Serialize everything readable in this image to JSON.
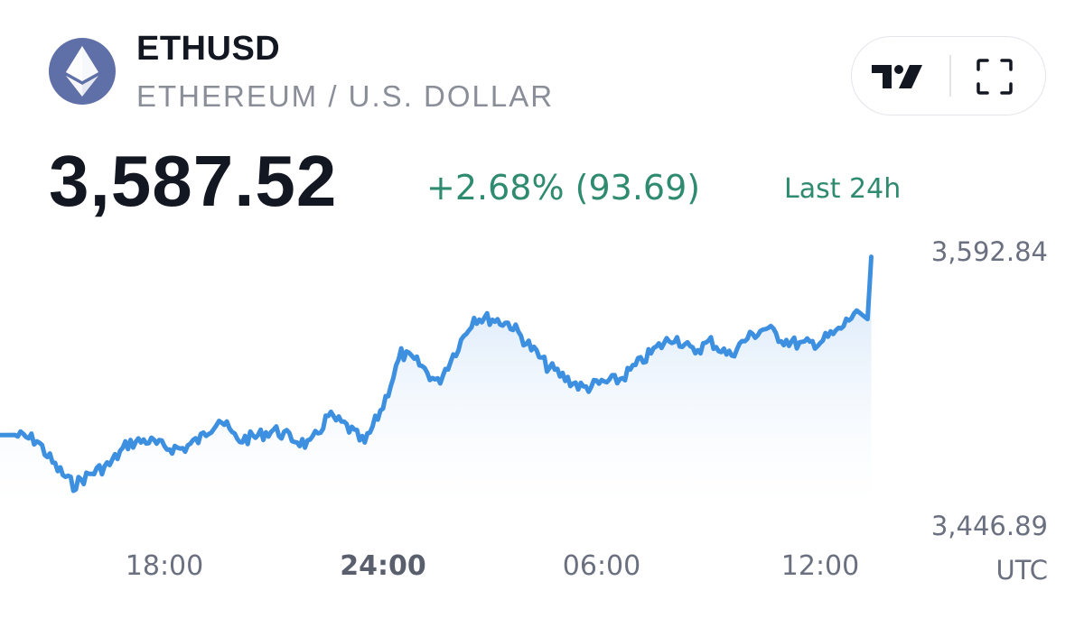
{
  "header": {
    "symbol": "ETHUSD",
    "subtitle": "ETHEREUM / U.S. DOLLAR",
    "logo_icon": "ethereum-icon"
  },
  "toolbar": {
    "tradingview_icon": "tradingview-logo-icon",
    "fullscreen_icon": "fullscreen-icon"
  },
  "quote": {
    "price": "3,587.52",
    "change": "+2.68% (93.69)",
    "period": "Last 24h",
    "change_color": "#2e8b6f"
  },
  "colors": {
    "line": "#3d8fe0",
    "area_top": "#cfe3f8",
    "text_primary": "#131722",
    "text_secondary": "#8a8e99",
    "logo_bg": "#5f6fa8"
  },
  "chart_data": {
    "type": "area",
    "timezone_label": "UTC",
    "x_tick_labels": [
      "18:00",
      "24:00",
      "06:00",
      "12:00"
    ],
    "x_tick_hours": [
      18,
      24,
      30,
      36
    ],
    "bold_tick": "24:00",
    "y_tick_labels": [
      "3,592.84",
      "3,446.89"
    ],
    "ylim": [
      3446.89,
      3592.84
    ],
    "grid": false,
    "series": [
      {
        "x": [
          13.9,
          14.5,
          15.0,
          15.5,
          16.0,
          16.5,
          17.0,
          17.5,
          18.0,
          18.5,
          19.0,
          19.5,
          20.0,
          20.5,
          21.0,
          21.5,
          22.0,
          22.5,
          23.0,
          23.5,
          24.0,
          24.5,
          25.0,
          25.5,
          26.0,
          26.5,
          27.0,
          27.5,
          28.0,
          28.5,
          29.0,
          29.5,
          30.0,
          30.5,
          31.0,
          31.5,
          32.0,
          32.5,
          33.0,
          33.5,
          34.0,
          34.5,
          35.0,
          35.5,
          36.0,
          36.5,
          37.0,
          37.3,
          37.4
        ],
        "y": [
          3489,
          3486,
          3471,
          3460,
          3467,
          3472,
          3484,
          3486,
          3482,
          3481,
          3487,
          3499,
          3486,
          3488,
          3492,
          3487,
          3483,
          3500,
          3494,
          3484,
          3506,
          3536,
          3530,
          3519,
          3538,
          3557,
          3556,
          3553,
          3541,
          3529,
          3522,
          3516,
          3519,
          3521,
          3530,
          3539,
          3546,
          3537,
          3543,
          3535,
          3545,
          3551,
          3544,
          3541,
          3543,
          3549,
          3561,
          3556,
          3592
        ]
      }
    ]
  }
}
